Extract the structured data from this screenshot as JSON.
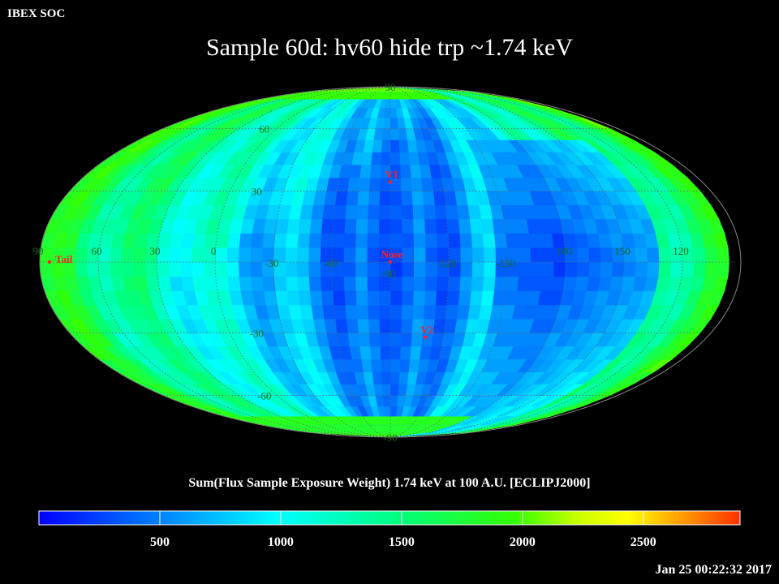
{
  "header": {
    "org_label": "IBEX SOC",
    "timestamp": "Jan 25 00:22:32 2017"
  },
  "chart_data": {
    "type": "heatmap",
    "projection": "mollweide",
    "title": "Sample 60d: hv60 hide trp ~1.74 keV",
    "colorbar": {
      "title": "Sum(Flux Sample Exposure Weight)  1.74 keV at 100 A.U. [ECLIPJ2000]",
      "range": [
        0,
        2900
      ],
      "tick_values": [
        500,
        1000,
        1500,
        2000,
        2500
      ],
      "tick_labels": [
        "500",
        "1000",
        "1500",
        "2000",
        "2500"
      ],
      "colors": [
        "#0000ff",
        "#00ffff",
        "#00ff80",
        "#00ff00",
        "#ffff00",
        "#ff4000"
      ]
    },
    "longitude_labels": [
      "60",
      "30",
      "0",
      "-30",
      "-60",
      "-90",
      "-120",
      "-150",
      "180",
      "150",
      "120",
      "90"
    ],
    "latitude_labels": [
      "90",
      "60",
      "30",
      "-30",
      "-60",
      "-90"
    ],
    "markers": [
      {
        "name": "V1",
        "lon": -90,
        "lat": 34,
        "color": "#ff2020"
      },
      {
        "name": "Nose",
        "lon": -90,
        "lat": 0,
        "color": "#ff2020"
      },
      {
        "name": "V2",
        "lon": -110,
        "lat": -32,
        "color": "#ff2020"
      },
      {
        "name": "Tail",
        "lon": 85,
        "lat": 0,
        "color": "#ff2020"
      }
    ],
    "sky_map_summary": "Vertical bands of flux; minimum (~300-600) near center and at 120-180 east region, rising to ~1500-2000 at limbs",
    "grid": true
  }
}
